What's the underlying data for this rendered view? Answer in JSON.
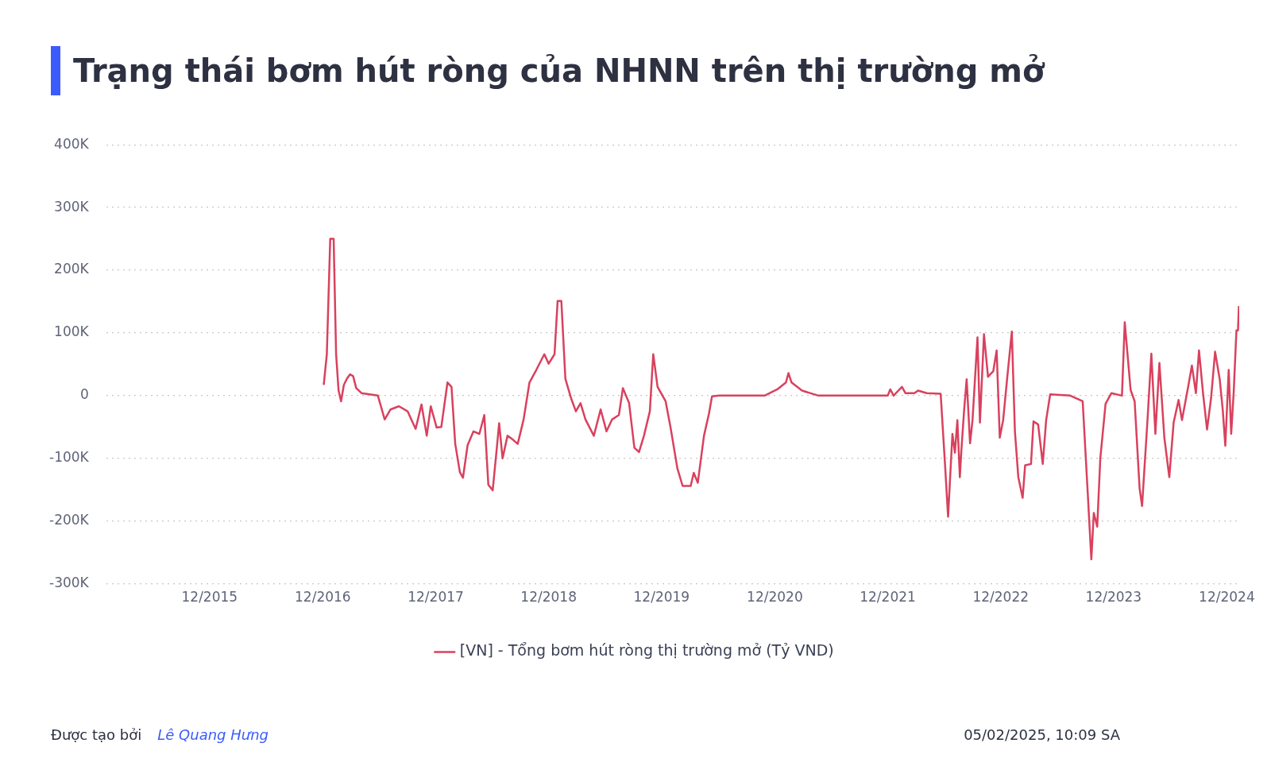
{
  "chart_data": {
    "type": "line",
    "title": "Trạng thái bơm hút ròng của NHNN trên thị trường mở",
    "x": [
      "2016-12-04",
      "2016-12-14",
      "2016-12-25",
      "2017-01-05",
      "2017-01-13",
      "2017-01-21",
      "2017-01-29",
      "2017-02-07",
      "2017-02-17",
      "2017-02-27",
      "2017-03-09",
      "2017-03-19",
      "2017-04-05",
      "2017-05-28",
      "2017-06-19",
      "2017-07-08",
      "2017-08-04",
      "2017-09-01",
      "2017-09-27",
      "2017-10-16",
      "2017-11-02",
      "2017-11-15",
      "2017-12-04",
      "2017-12-19",
      "2018-01-08",
      "2018-01-21",
      "2018-02-02",
      "2018-02-17",
      "2018-02-27",
      "2018-03-14",
      "2018-04-02",
      "2018-04-21",
      "2018-05-07",
      "2018-05-20",
      "2018-06-03",
      "2018-06-14",
      "2018-06-24",
      "2018-07-05",
      "2018-07-21",
      "2018-08-07",
      "2018-08-23",
      "2018-09-11",
      "2018-09-30",
      "2018-10-21",
      "2018-11-17",
      "2018-12-01",
      "2018-12-20",
      "2018-12-30",
      "2019-01-11",
      "2019-01-24",
      "2019-02-12",
      "2019-02-27",
      "2019-03-14",
      "2019-03-30",
      "2019-04-26",
      "2019-05-18",
      "2019-06-06",
      "2019-06-24",
      "2019-07-16",
      "2019-07-29",
      "2019-08-18",
      "2019-09-04",
      "2019-09-19",
      "2019-10-05",
      "2019-10-24",
      "2019-11-04",
      "2019-11-18",
      "2019-12-14",
      "2019-12-30",
      "2020-01-21",
      "2020-02-07",
      "2020-03-04",
      "2020-03-14",
      "2020-03-27",
      "2020-04-16",
      "2020-05-02",
      "2020-05-12",
      "2020-06-04",
      "2020-10-29",
      "2020-12-09",
      "2021-01-06",
      "2021-01-14",
      "2021-01-24",
      "2021-02-27",
      "2021-04-21",
      "2021-12-01",
      "2021-12-09",
      "2021-12-20",
      "2022-01-06",
      "2022-01-16",
      "2022-01-27",
      "2022-02-25",
      "2022-03-09",
      "2022-04-06",
      "2022-05-21",
      "2022-06-04",
      "2022-06-14",
      "2022-06-28",
      "2022-07-06",
      "2022-07-14",
      "2022-07-22",
      "2022-07-27",
      "2022-08-05",
      "2022-08-13",
      "2022-08-24",
      "2022-09-01",
      "2022-09-17",
      "2022-09-25",
      "2022-10-08",
      "2022-10-21",
      "2022-11-07",
      "2022-11-18",
      "2022-11-28",
      "2022-12-09",
      "2022-12-22",
      "2023-01-06",
      "2023-01-16",
      "2023-01-27",
      "2023-02-10",
      "2023-02-18",
      "2023-03-09",
      "2023-03-17",
      "2023-04-01",
      "2023-04-16",
      "2023-04-27",
      "2023-05-10",
      "2023-07-14",
      "2023-08-23",
      "2023-09-07",
      "2023-09-20",
      "2023-09-28",
      "2023-10-09",
      "2023-10-19",
      "2023-11-05",
      "2023-11-24",
      "2023-12-28",
      "2024-01-06",
      "2024-01-25",
      "2024-02-07",
      "2024-02-23",
      "2024-03-02",
      "2024-03-20",
      "2024-04-01",
      "2024-04-14",
      "2024-04-27",
      "2024-05-13",
      "2024-05-29",
      "2024-06-12",
      "2024-06-28",
      "2024-07-09",
      "2024-07-30",
      "2024-08-10",
      "2024-08-23",
      "2024-09-02",
      "2024-09-15",
      "2024-09-28",
      "2024-10-11",
      "2024-10-24",
      "2024-11-08",
      "2024-11-18",
      "2024-11-26",
      "2024-12-07",
      "2024-12-15",
      "2024-12-23",
      "2025-01-01",
      "2025-01-06",
      "2025-01-09"
    ],
    "series": [
      {
        "name": "[VN] - Tổng bơm hút ròng thị trường mở (Tỷ VND)",
        "color": "#d9415e",
        "values": [
          17000,
          66000,
          250000,
          250000,
          66000,
          8000,
          -9000,
          17000,
          27000,
          34000,
          31000,
          12000,
          4000,
          0,
          -38000,
          -22000,
          -17000,
          -25000,
          -53000,
          -14000,
          -64000,
          -17000,
          -51000,
          -50000,
          21000,
          14000,
          -77000,
          -122000,
          -131000,
          -79000,
          -57000,
          -61000,
          -31000,
          -142000,
          -151000,
          -96000,
          -44000,
          -100000,
          -64000,
          -70000,
          -77000,
          -38000,
          21000,
          40000,
          66000,
          51000,
          66000,
          151000,
          151000,
          27000,
          -5000,
          -25000,
          -12000,
          -38000,
          -64000,
          -22000,
          -57000,
          -38000,
          -31000,
          12000,
          -12000,
          -83000,
          -90000,
          -64000,
          -25000,
          66000,
          14000,
          -9000,
          -51000,
          -116000,
          -144000,
          -144000,
          -123000,
          -139000,
          -64000,
          -29000,
          -1000,
          0,
          0,
          10000,
          21000,
          36000,
          21000,
          8000,
          0,
          0,
          10000,
          0,
          9000,
          14000,
          4000,
          4000,
          8000,
          4000,
          3000,
          -109000,
          -193000,
          -61000,
          -91000,
          -39000,
          -130000,
          -87000,
          -22000,
          26000,
          -76000,
          -39000,
          93000,
          -43000,
          98000,
          30000,
          39000,
          72000,
          -67000,
          -39000,
          28000,
          102000,
          -57000,
          -130000,
          -163000,
          -111000,
          -109000,
          -41000,
          -46000,
          -109000,
          -39000,
          2000,
          0,
          -9000,
          -143000,
          -261000,
          -187000,
          -209000,
          -100000,
          -13000,
          4000,
          0,
          117000,
          9000,
          -9000,
          -148000,
          -176000,
          -35000,
          67000,
          -61000,
          52000,
          -67000,
          -130000,
          -43000,
          -7000,
          -39000,
          17000,
          48000,
          4000,
          72000,
          4000,
          -54000,
          -4000,
          70000,
          26000,
          -24000,
          -80000,
          41000,
          -61000,
          4000,
          104000,
          104000,
          143000
        ]
      }
    ],
    "xlim": [
      "2015-01-01",
      "2025-01-10"
    ],
    "xticks": [
      {
        "value": "2015-12-01",
        "label": "12/2015"
      },
      {
        "value": "2016-12-01",
        "label": "12/2016"
      },
      {
        "value": "2017-12-01",
        "label": "12/2017"
      },
      {
        "value": "2018-12-01",
        "label": "12/2018"
      },
      {
        "value": "2019-12-01",
        "label": "12/2019"
      },
      {
        "value": "2020-12-01",
        "label": "12/2020"
      },
      {
        "value": "2021-12-01",
        "label": "12/2021"
      },
      {
        "value": "2022-12-01",
        "label": "12/2022"
      },
      {
        "value": "2023-12-01",
        "label": "12/2023"
      },
      {
        "value": "2024-12-01",
        "label": "12/2024"
      }
    ],
    "ylim": [
      -300000,
      400000
    ],
    "yticks": [
      {
        "value": -300000,
        "label": "-300K"
      },
      {
        "value": -200000,
        "label": "-200K"
      },
      {
        "value": -100000,
        "label": "-100K"
      },
      0,
      {
        "value": 100000,
        "label": "100K"
      },
      {
        "value": 200000,
        "label": "200K"
      },
      {
        "value": 300000,
        "label": "300K"
      },
      {
        "value": 400000,
        "label": "400K"
      }
    ],
    "grid": "y",
    "legend": "bottom",
    "marker": "none",
    "line_style": "solid",
    "annotations": [
      "Được tạo bởi",
      "Lê Quang Hưng",
      "05/02/2025, 10:09 SA"
    ]
  }
}
